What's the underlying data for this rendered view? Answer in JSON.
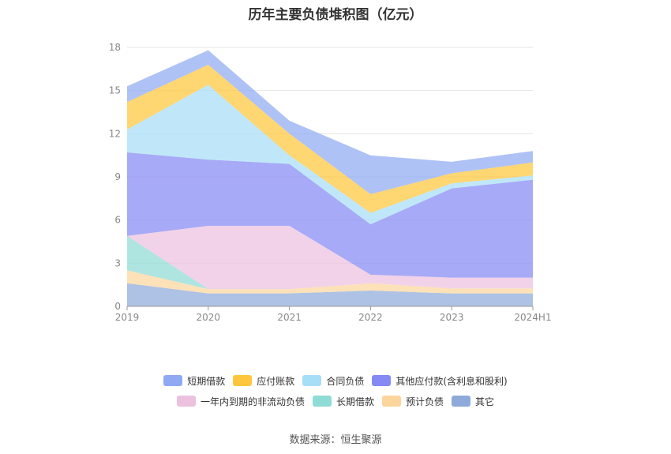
{
  "chart_data": {
    "type": "area",
    "stacked": true,
    "title": "历年主要负债堆积图（亿元）",
    "categories": [
      "2019",
      "2020",
      "2021",
      "2022",
      "2023",
      "2024H1"
    ],
    "ylim": [
      0,
      18
    ],
    "yticks": [
      "0",
      "3",
      "6",
      "9",
      "12",
      "15",
      "18"
    ],
    "grid": true,
    "legend_position": "bottom",
    "series": [
      {
        "name": "其它",
        "color": "#8eaadb",
        "values": [
          1.6,
          0.9,
          0.9,
          1.1,
          0.9,
          0.9
        ]
      },
      {
        "name": "预计负债",
        "color": "#fcd59c",
        "values": [
          0.9,
          0.3,
          0.3,
          0.5,
          0.35,
          0.35
        ]
      },
      {
        "name": "长期借款",
        "color": "#8fdbd6",
        "values": [
          2.4,
          0.0,
          0.0,
          0.0,
          0.0,
          0.0
        ]
      },
      {
        "name": "一年内到期的非流动负债",
        "color": "#ecc1e0",
        "values": [
          0.0,
          4.4,
          4.4,
          0.6,
          0.75,
          0.75
        ]
      },
      {
        "name": "其他应付款(含利息和股利)",
        "color": "#8589f3",
        "values": [
          5.8,
          4.6,
          4.3,
          3.5,
          6.2,
          6.8
        ]
      },
      {
        "name": "合同负债",
        "color": "#a6def7",
        "values": [
          1.6,
          5.2,
          0.6,
          0.8,
          0.35,
          0.3
        ]
      },
      {
        "name": "应付账款",
        "color": "#fdc63c",
        "values": [
          1.9,
          1.4,
          1.5,
          1.3,
          0.7,
          0.9
        ]
      },
      {
        "name": "短期借款",
        "color": "#8faaf3",
        "values": [
          1.1,
          1.0,
          0.9,
          2.7,
          0.8,
          0.8
        ]
      }
    ]
  },
  "legend": {
    "row1": [
      "短期借款",
      "应付账款",
      "合同负债",
      "其他应付款(含利息和股利)"
    ],
    "row2": [
      "一年内到期的非流动负债",
      "长期借款",
      "预计负债",
      "其它"
    ]
  },
  "source": "数据来源：恒生聚源"
}
